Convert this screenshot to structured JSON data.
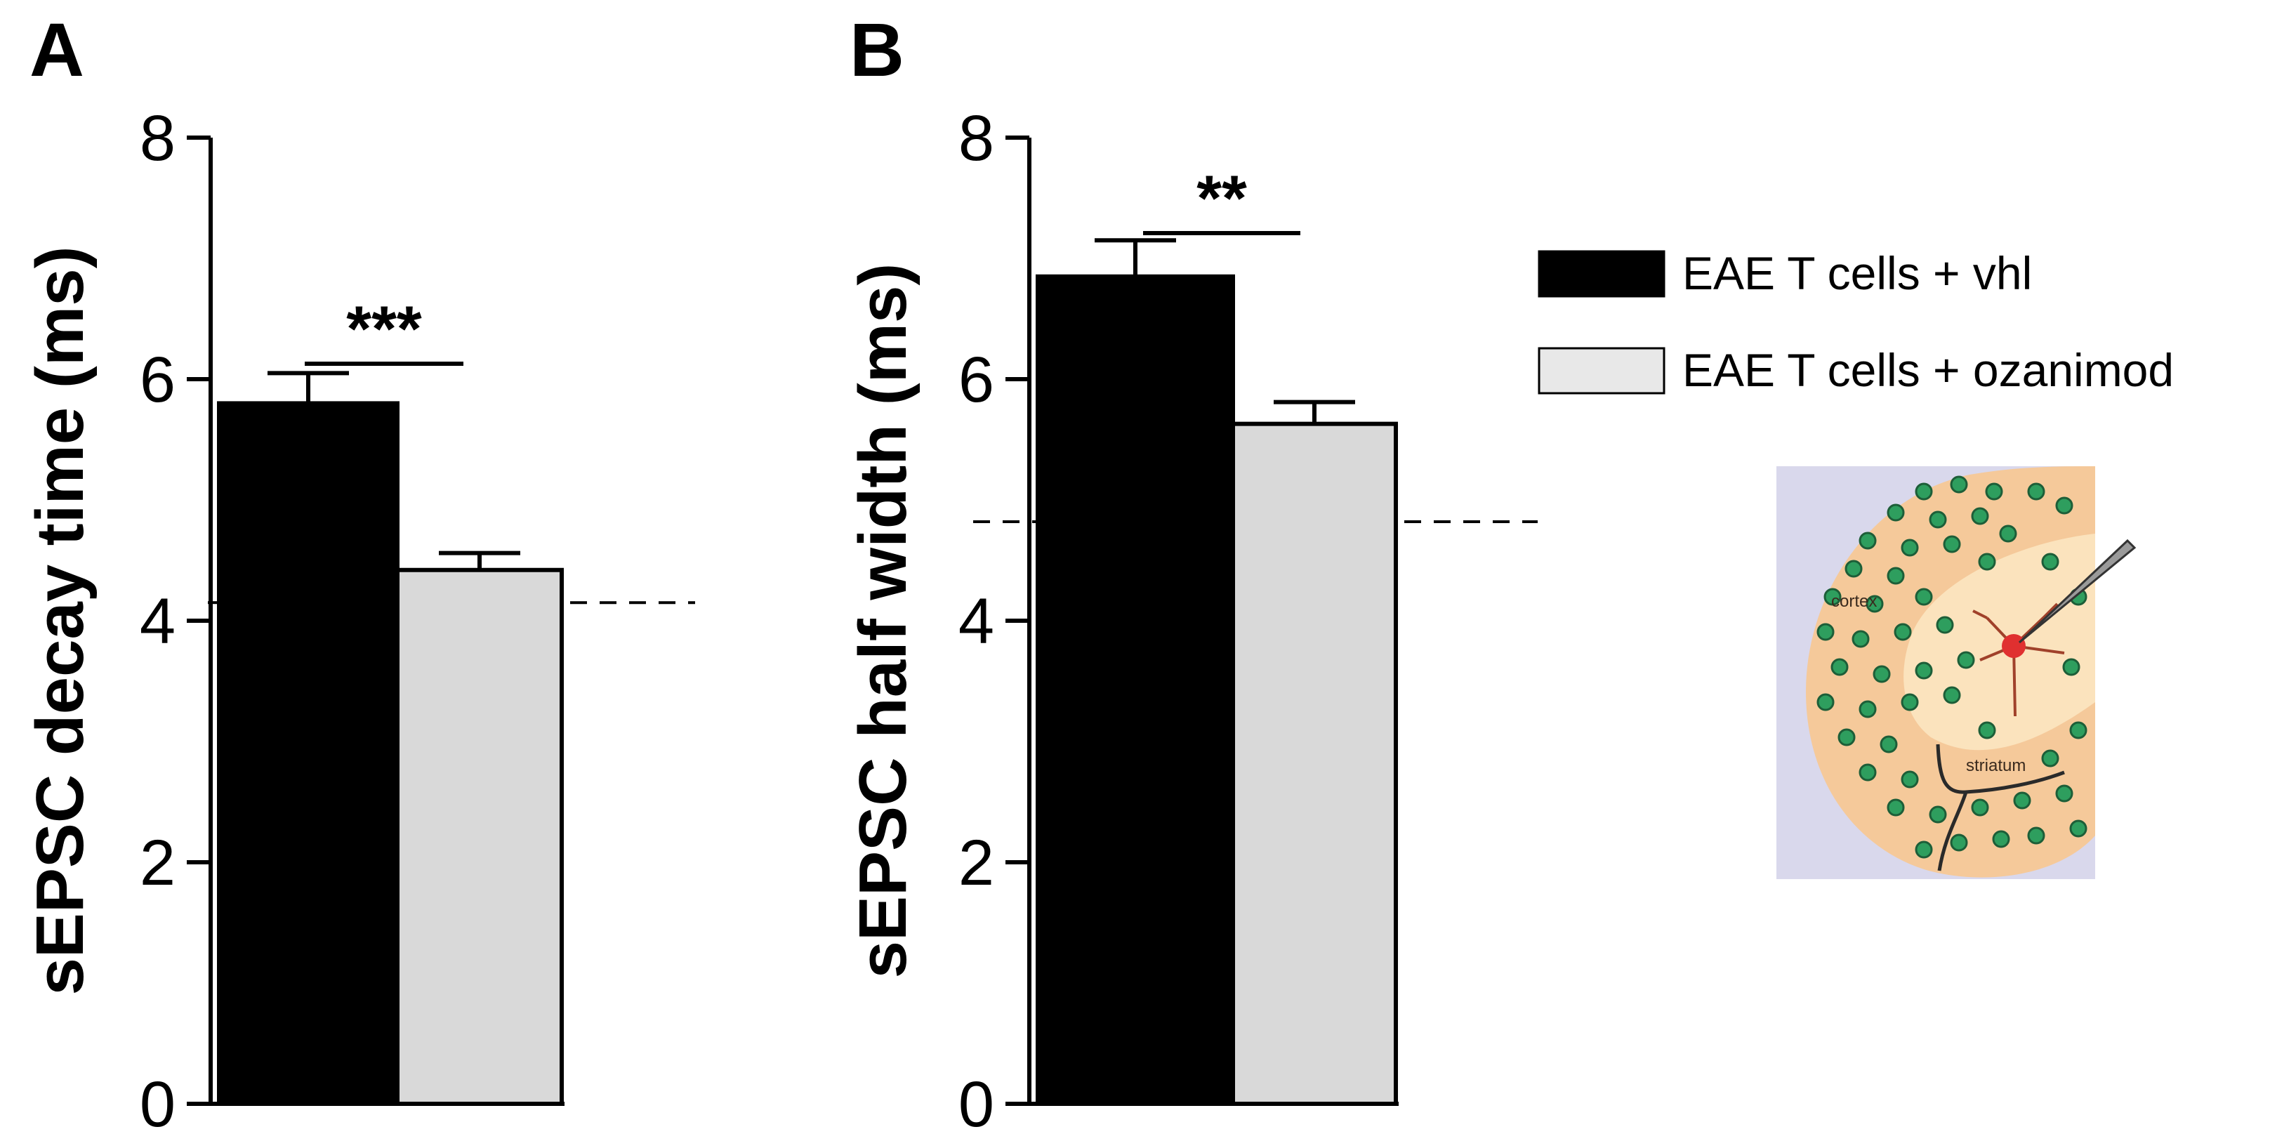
{
  "colors": {
    "vhl": "#000000",
    "ozanimod": "#d9d9d9",
    "axis": "#000000",
    "inset_bg": "#d9d8ec",
    "inset_slice": "#f5c99a",
    "inset_cells": "#2e9e5e",
    "inset_neuron": "#e03030"
  },
  "legend": {
    "items": [
      {
        "label": "EAE T cells + vhl",
        "color": "#000000"
      },
      {
        "label": "EAE T cells + ozanimod",
        "color": "#e8e8e8"
      }
    ]
  },
  "inset": {
    "label_cortex": "cortex",
    "label_striatum": "striatum",
    "icons": [
      "brain-slice",
      "t-cell",
      "neuron",
      "recording-electrode"
    ]
  },
  "chart_data": [
    {
      "type": "bar",
      "panel_label": "A",
      "ylabel": "sEPSC decay time (ms)",
      "ylim": [
        0,
        8
      ],
      "yticks": [
        0,
        2,
        4,
        6,
        8
      ],
      "series": [
        {
          "name": "EAE T cells + vhl",
          "value": 5.8,
          "error": 0.25,
          "color": "#000000"
        },
        {
          "name": "EAE T cells + ozanimod",
          "value": 4.42,
          "error": 0.14,
          "color": "#d9d9d9"
        }
      ],
      "significance": "***",
      "reference_line": 4.15,
      "grid": false
    },
    {
      "type": "bar",
      "panel_label": "B",
      "ylabel": "sEPSC half width (ms)",
      "ylim": [
        0,
        8
      ],
      "yticks": [
        0,
        2,
        4,
        6,
        8
      ],
      "series": [
        {
          "name": "EAE T cells + vhl",
          "value": 6.85,
          "error": 0.3,
          "color": "#000000"
        },
        {
          "name": "EAE T cells + ozanimod",
          "value": 5.63,
          "error": 0.18,
          "color": "#d9d9d9"
        }
      ],
      "significance": "**",
      "reference_line": 4.82,
      "grid": false
    }
  ]
}
